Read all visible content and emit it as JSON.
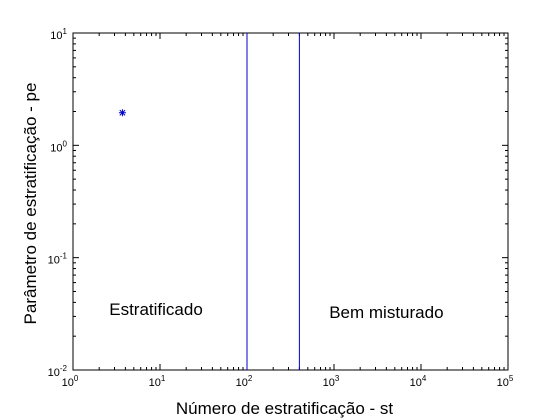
{
  "chart_data": {
    "type": "scatter",
    "xlabel": "Número de estratificação - st",
    "ylabel": "Parâmetro de estratificação - pe",
    "xscale": "log",
    "yscale": "log",
    "xlim": [
      1,
      100000
    ],
    "ylim": [
      0.01,
      10
    ],
    "x_ticks": [
      {
        "base": "10",
        "exp": "0",
        "value": 1
      },
      {
        "base": "10",
        "exp": "1",
        "value": 10
      },
      {
        "base": "10",
        "exp": "2",
        "value": 100
      },
      {
        "base": "10",
        "exp": "3",
        "value": 1000
      },
      {
        "base": "10",
        "exp": "4",
        "value": 10000
      },
      {
        "base": "10",
        "exp": "5",
        "value": 100000
      }
    ],
    "y_ticks": [
      {
        "base": "10",
        "exp": "-2",
        "value": 0.01
      },
      {
        "base": "10",
        "exp": "-1",
        "value": 0.1
      },
      {
        "base": "10",
        "exp": "0",
        "value": 1
      },
      {
        "base": "10",
        "exp": "1",
        "value": 10
      }
    ],
    "points": [
      {
        "x": 3.7,
        "y": 1.95,
        "marker": "*"
      }
    ],
    "vertical_lines": [
      {
        "x": 100
      },
      {
        "x": 400
      }
    ],
    "annotations": [
      {
        "text": "Estratificado",
        "x": 9,
        "y": 0.031
      },
      {
        "text": "Bem misturado",
        "x": 4000,
        "y": 0.029
      }
    ],
    "grid": false,
    "colors": {
      "series": "#0000cc",
      "axes": "#000000",
      "background": "#ffffff"
    }
  }
}
